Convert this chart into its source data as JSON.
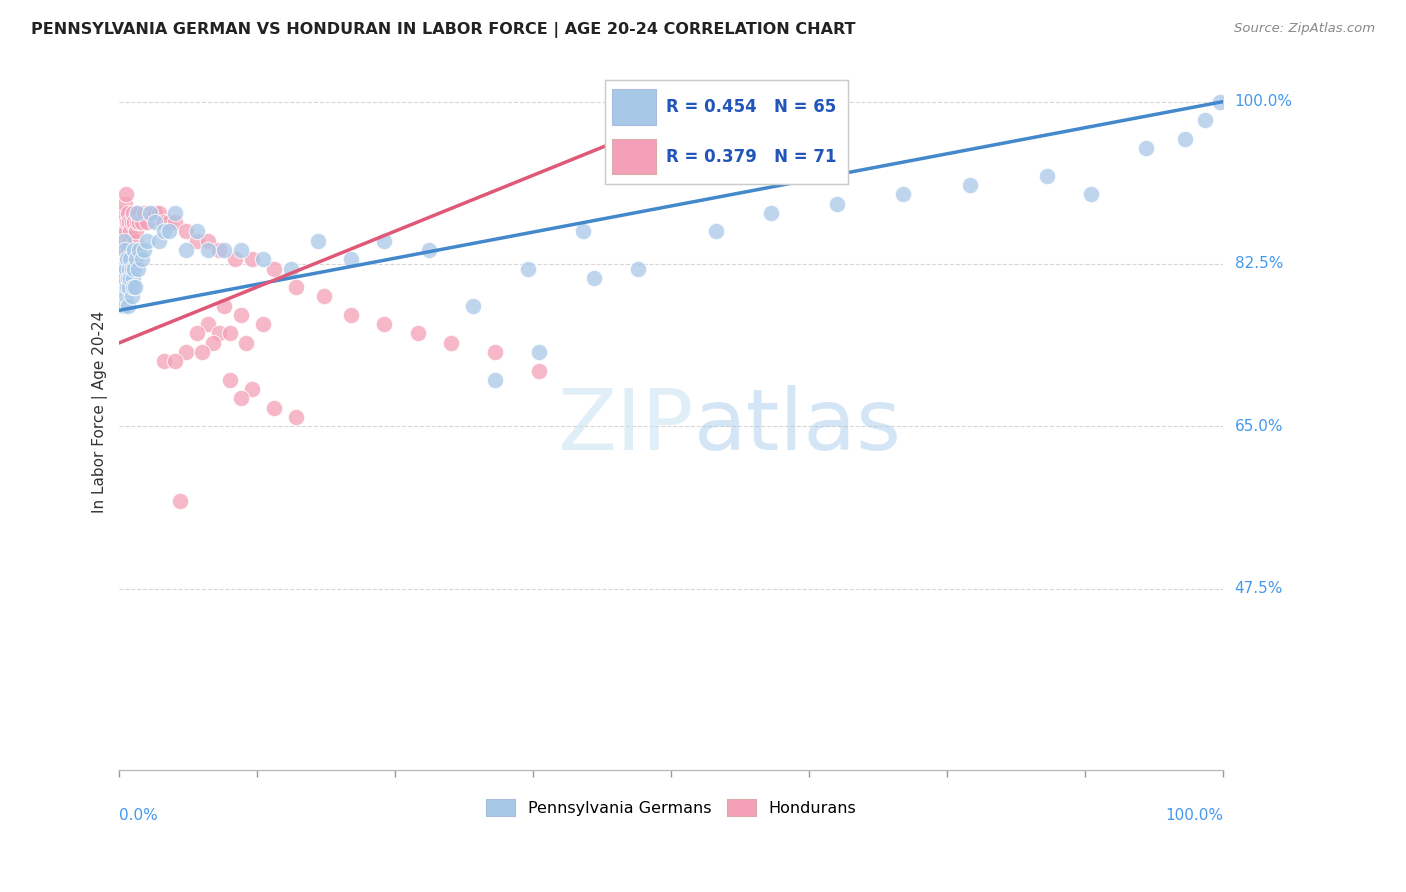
{
  "title": "PENNSYLVANIA GERMAN VS HONDURAN IN LABOR FORCE | AGE 20-24 CORRELATION CHART",
  "source": "Source: ZipAtlas.com",
  "ylabel": "In Labor Force | Age 20-24",
  "blue_R": "R = 0.454",
  "blue_N": "N = 65",
  "pink_R": "R = 0.379",
  "pink_N": "N = 71",
  "blue_color": "#a8c8e8",
  "pink_color": "#f4a0b8",
  "blue_line_color": "#4488cc",
  "pink_line_color": "#e05878",
  "legend_label_blue": "Pennsylvania Germans",
  "legend_label_pink": "Hondurans",
  "watermark_zip": "ZIP",
  "watermark_atlas": "atlas",
  "background_color": "#ffffff",
  "grid_color": "#cccccc",
  "blue_scatter_x": [
    0.002,
    0.003,
    0.004,
    0.004,
    0.005,
    0.005,
    0.006,
    0.006,
    0.007,
    0.007,
    0.008,
    0.008,
    0.009,
    0.009,
    0.01,
    0.01,
    0.011,
    0.011,
    0.012,
    0.012,
    0.013,
    0.013,
    0.014,
    0.015,
    0.016,
    0.017,
    0.018,
    0.02,
    0.022,
    0.025,
    0.028,
    0.032,
    0.036,
    0.04,
    0.045,
    0.05,
    0.06,
    0.07,
    0.08,
    0.095,
    0.11,
    0.13,
    0.155,
    0.18,
    0.21,
    0.24,
    0.28,
    0.32,
    0.37,
    0.42,
    0.34,
    0.38,
    0.43,
    0.47,
    0.54,
    0.59,
    0.65,
    0.71,
    0.77,
    0.84,
    0.88,
    0.93,
    0.965,
    0.983,
    0.997
  ],
  "blue_scatter_y": [
    0.8,
    0.82,
    0.78,
    0.85,
    0.81,
    0.84,
    0.79,
    0.82,
    0.8,
    0.83,
    0.81,
    0.78,
    0.82,
    0.8,
    0.83,
    0.81,
    0.79,
    0.82,
    0.81,
    0.8,
    0.82,
    0.84,
    0.8,
    0.83,
    0.88,
    0.82,
    0.84,
    0.83,
    0.84,
    0.85,
    0.88,
    0.87,
    0.85,
    0.86,
    0.86,
    0.88,
    0.84,
    0.86,
    0.84,
    0.84,
    0.84,
    0.83,
    0.82,
    0.85,
    0.83,
    0.85,
    0.84,
    0.78,
    0.82,
    0.86,
    0.7,
    0.73,
    0.81,
    0.82,
    0.86,
    0.88,
    0.89,
    0.9,
    0.91,
    0.92,
    0.9,
    0.95,
    0.96,
    0.98,
    1.0
  ],
  "pink_scatter_x": [
    0.002,
    0.003,
    0.003,
    0.004,
    0.004,
    0.005,
    0.005,
    0.006,
    0.006,
    0.007,
    0.007,
    0.008,
    0.008,
    0.009,
    0.009,
    0.01,
    0.01,
    0.011,
    0.011,
    0.012,
    0.012,
    0.013,
    0.013,
    0.014,
    0.015,
    0.016,
    0.017,
    0.018,
    0.02,
    0.022,
    0.025,
    0.028,
    0.032,
    0.036,
    0.04,
    0.045,
    0.05,
    0.06,
    0.07,
    0.08,
    0.09,
    0.105,
    0.12,
    0.14,
    0.16,
    0.185,
    0.21,
    0.24,
    0.27,
    0.3,
    0.34,
    0.38,
    0.095,
    0.11,
    0.13,
    0.08,
    0.09,
    0.1,
    0.115,
    0.07,
    0.085,
    0.06,
    0.075,
    0.04,
    0.05,
    0.1,
    0.12,
    0.11,
    0.14,
    0.16,
    0.055
  ],
  "pink_scatter_y": [
    0.8,
    0.84,
    0.88,
    0.82,
    0.86,
    0.85,
    0.89,
    0.86,
    0.9,
    0.83,
    0.87,
    0.84,
    0.88,
    0.85,
    0.87,
    0.82,
    0.86,
    0.84,
    0.87,
    0.84,
    0.88,
    0.83,
    0.87,
    0.85,
    0.86,
    0.87,
    0.88,
    0.87,
    0.87,
    0.88,
    0.87,
    0.88,
    0.88,
    0.88,
    0.87,
    0.87,
    0.87,
    0.86,
    0.85,
    0.85,
    0.84,
    0.83,
    0.83,
    0.82,
    0.8,
    0.79,
    0.77,
    0.76,
    0.75,
    0.74,
    0.73,
    0.71,
    0.78,
    0.77,
    0.76,
    0.76,
    0.75,
    0.75,
    0.74,
    0.75,
    0.74,
    0.73,
    0.73,
    0.72,
    0.72,
    0.7,
    0.69,
    0.68,
    0.67,
    0.66,
    0.57
  ],
  "ytick_vals": [
    1.0,
    0.825,
    0.65,
    0.475
  ],
  "ytick_labels": [
    "100.0%",
    "82.5%",
    "65.0%",
    "47.5%"
  ],
  "ylim": [
    0.28,
    1.05
  ],
  "xlim": [
    0.0,
    1.0
  ]
}
